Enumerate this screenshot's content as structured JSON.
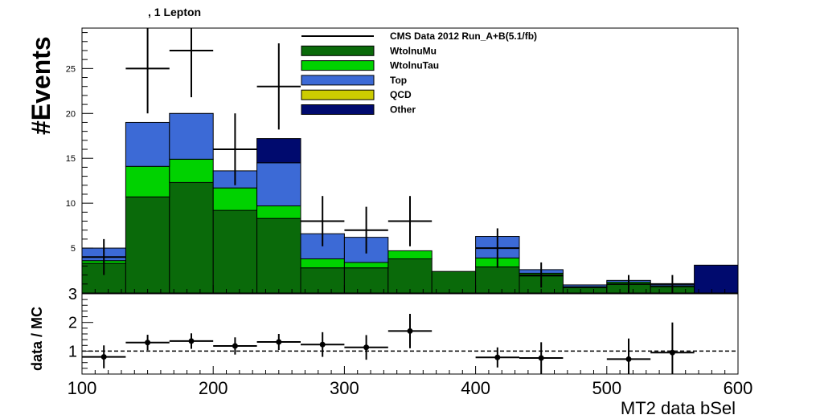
{
  "chart_data": [
    {
      "type": "histogram-stack",
      "title": ", 1 Lepton",
      "ylabel": "#Events",
      "xlabel": "MT2  data  bSel",
      "xlim": [
        100,
        600
      ],
      "ylim": [
        0,
        29.5
      ],
      "yticks": [
        5,
        10,
        15,
        20,
        25
      ],
      "bins": [
        100,
        133.33,
        166.67,
        200,
        233.33,
        266.67,
        300,
        333.33,
        366.67,
        400,
        433.33,
        466.67,
        500,
        533.33,
        566.67,
        600
      ],
      "legend": {
        "placement": "top-center",
        "entries": [
          "CMS Data 2012 Run_A+B(5.1/fb)",
          "WtolnuMu",
          "WtolnuTau",
          "Top",
          "QCD",
          "Other"
        ]
      },
      "series": [
        {
          "name": "WtolnuMu",
          "color": "#0a6a0a",
          "values": [
            3.3,
            10.7,
            12.3,
            9.2,
            8.3,
            2.8,
            2.8,
            3.8,
            2.4,
            2.9,
            1.9,
            0.6,
            1.0,
            0.7,
            0.0
          ]
        },
        {
          "name": "WtolnuTau",
          "color": "#00d200",
          "values": [
            0.3,
            3.4,
            2.6,
            2.5,
            1.4,
            1.0,
            0.6,
            0.9,
            0.0,
            1.0,
            0.3,
            0.1,
            0.2,
            0.1,
            0.0
          ]
        },
        {
          "name": "Top",
          "color": "#3c6ad6",
          "values": [
            1.4,
            4.9,
            5.1,
            1.9,
            4.8,
            2.8,
            2.8,
            0.0,
            0.0,
            2.4,
            0.4,
            0.2,
            0.2,
            0.2,
            0.0
          ]
        },
        {
          "name": "QCD",
          "color": "#cccc00",
          "values": [
            0,
            0,
            0,
            0,
            0,
            0,
            0,
            0,
            0,
            0,
            0,
            0,
            0,
            0,
            0
          ]
        },
        {
          "name": "Other",
          "color": "#000a6e",
          "values": [
            0.0,
            0.0,
            0.0,
            0.0,
            2.7,
            0.0,
            0.0,
            0.0,
            0.0,
            0.0,
            0.0,
            0.0,
            0.0,
            0.0,
            3.1
          ]
        }
      ],
      "data_points": [
        {
          "x": 116.67,
          "y": 4,
          "yerr": [
            2.0,
            2.0
          ]
        },
        {
          "x": 150,
          "y": 25,
          "yerr": [
            5.0,
            5.0
          ]
        },
        {
          "x": 183.33,
          "y": 27,
          "yerr": [
            5.2,
            5.2
          ]
        },
        {
          "x": 216.67,
          "y": 16,
          "yerr": [
            4.0,
            4.0
          ]
        },
        {
          "x": 250,
          "y": 23,
          "yerr": [
            4.8,
            4.8
          ]
        },
        {
          "x": 283.33,
          "y": 8,
          "yerr": [
            2.8,
            2.8
          ]
        },
        {
          "x": 316.67,
          "y": 7,
          "yerr": [
            2.6,
            2.6
          ]
        },
        {
          "x": 350,
          "y": 8,
          "yerr": [
            2.8,
            2.8
          ]
        },
        {
          "x": 416.67,
          "y": 5,
          "yerr": [
            2.2,
            2.2
          ]
        },
        {
          "x": 450,
          "y": 2,
          "yerr": [
            1.4,
            1.4
          ]
        },
        {
          "x": 516.67,
          "y": 1,
          "yerr": [
            1.0,
            1.0
          ]
        },
        {
          "x": 550,
          "y": 1,
          "yerr": [
            1.0,
            1.0
          ]
        }
      ]
    },
    {
      "type": "scatter",
      "ylabel": "data / MC",
      "xlabel": "MT2  data  bSel",
      "xlim": [
        100,
        600
      ],
      "ylim": [
        0.2,
        3
      ],
      "yticks": [
        1,
        2,
        3
      ],
      "xticks": [
        100,
        200,
        300,
        400,
        500,
        600
      ],
      "reference_line": 1,
      "points": [
        {
          "x": 116.67,
          "y": 0.8,
          "yerr": [
            0.4,
            0.4
          ]
        },
        {
          "x": 150,
          "y": 1.3,
          "yerr": [
            0.27,
            0.27
          ]
        },
        {
          "x": 183.33,
          "y": 1.35,
          "yerr": [
            0.27,
            0.27
          ]
        },
        {
          "x": 216.67,
          "y": 1.18,
          "yerr": [
            0.3,
            0.3
          ]
        },
        {
          "x": 250,
          "y": 1.32,
          "yerr": [
            0.28,
            0.28
          ]
        },
        {
          "x": 283.33,
          "y": 1.23,
          "yerr": [
            0.43,
            0.43
          ]
        },
        {
          "x": 316.67,
          "y": 1.13,
          "yerr": [
            0.43,
            0.43
          ]
        },
        {
          "x": 350,
          "y": 1.7,
          "yerr": [
            0.6,
            0.6
          ]
        },
        {
          "x": 416.67,
          "y": 0.78,
          "yerr": [
            0.35,
            0.35
          ]
        },
        {
          "x": 450,
          "y": 0.76,
          "yerr": [
            0.55,
            0.55
          ]
        },
        {
          "x": 516.67,
          "y": 0.72,
          "yerr": [
            0.72,
            0.72
          ]
        },
        {
          "x": 550,
          "y": 0.95,
          "yerr": [
            0.95,
            1.05
          ]
        }
      ]
    }
  ]
}
